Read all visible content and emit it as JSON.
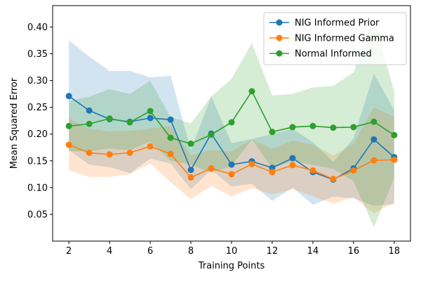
{
  "chart_data": {
    "type": "line",
    "title": "",
    "xlabel": "Training Points",
    "ylabel": "Mean Squared Error",
    "xlim": [
      1.2,
      18.8
    ],
    "ylim": [
      0.0,
      0.44
    ],
    "xticks": [
      2,
      4,
      6,
      8,
      10,
      12,
      14,
      16,
      18
    ],
    "yticks": [
      0.05,
      0.1,
      0.15,
      0.2,
      0.25,
      0.3,
      0.35,
      0.4
    ],
    "grid": false,
    "legend": "top-right",
    "x": [
      2,
      3,
      4,
      5,
      6,
      7,
      8,
      9,
      10,
      11,
      12,
      13,
      14,
      15,
      16,
      17,
      18
    ],
    "series": [
      {
        "name": "NIG Informed Prior",
        "color": "#1f77b4",
        "values": [
          0.271,
          0.244,
          0.228,
          0.223,
          0.23,
          0.227,
          0.133,
          0.201,
          0.143,
          0.149,
          0.137,
          0.155,
          0.129,
          0.115,
          0.136,
          0.19,
          0.157
        ],
        "upper": [
          0.375,
          0.345,
          0.318,
          0.318,
          0.306,
          0.309,
          0.17,
          0.27,
          0.183,
          0.191,
          0.2,
          0.21,
          0.185,
          0.148,
          0.192,
          0.313,
          0.245
        ],
        "lower": [
          0.17,
          0.143,
          0.138,
          0.127,
          0.154,
          0.145,
          0.097,
          0.133,
          0.102,
          0.107,
          0.075,
          0.1,
          0.068,
          0.083,
          0.08,
          0.066,
          0.069
        ]
      },
      {
        "name": "NIG Informed Gamma",
        "color": "#ff7f0e",
        "values": [
          0.18,
          0.165,
          0.162,
          0.165,
          0.177,
          0.163,
          0.119,
          0.136,
          0.125,
          0.144,
          0.129,
          0.142,
          0.132,
          0.116,
          0.132,
          0.151,
          0.152
        ],
        "upper": [
          0.229,
          0.21,
          0.205,
          0.206,
          0.21,
          0.215,
          0.16,
          0.17,
          0.168,
          0.19,
          0.172,
          0.188,
          0.18,
          0.16,
          0.182,
          0.25,
          0.232
        ],
        "lower": [
          0.132,
          0.12,
          0.12,
          0.125,
          0.145,
          0.11,
          0.078,
          0.103,
          0.083,
          0.099,
          0.087,
          0.097,
          0.084,
          0.07,
          0.082,
          0.052,
          0.072
        ]
      },
      {
        "name": "Normal Informed",
        "color": "#2ca02c",
        "values": [
          0.215,
          0.219,
          0.229,
          0.222,
          0.243,
          0.193,
          0.182,
          0.199,
          0.222,
          0.28,
          0.204,
          0.213,
          0.215,
          0.212,
          0.213,
          0.223,
          0.198
        ],
        "upper": [
          0.262,
          0.27,
          0.284,
          0.275,
          0.3,
          0.232,
          0.22,
          0.27,
          0.303,
          0.37,
          0.272,
          0.275,
          0.287,
          0.29,
          0.315,
          0.42,
          0.278
        ],
        "lower": [
          0.168,
          0.168,
          0.173,
          0.17,
          0.186,
          0.15,
          0.143,
          0.128,
          0.14,
          0.19,
          0.136,
          0.15,
          0.142,
          0.135,
          0.112,
          0.026,
          0.118
        ]
      }
    ]
  }
}
